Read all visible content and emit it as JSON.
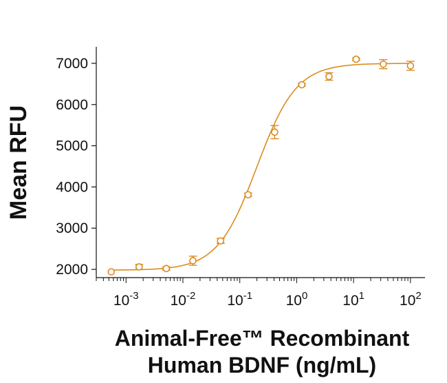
{
  "chart_data": {
    "type": "scatter",
    "x_scale": "log",
    "xlabel_lines": [
      "Animal-Free™ Recombinant",
      "Human BDNF (ng/mL)"
    ],
    "ylabel": "Mean RFU",
    "xlim": [
      0.0003,
      180
    ],
    "ylim": [
      1800,
      7400
    ],
    "y_ticks": [
      2000,
      3000,
      4000,
      5000,
      6000,
      7000
    ],
    "x_ticks": [
      {
        "value": 0.001,
        "base": "10",
        "exp": "-3"
      },
      {
        "value": 0.01,
        "base": "10",
        "exp": "-2"
      },
      {
        "value": 0.1,
        "base": "10",
        "exp": "-1"
      },
      {
        "value": 1,
        "base": "10",
        "exp": "0"
      },
      {
        "value": 10,
        "base": "10",
        "exp": "1"
      },
      {
        "value": 100,
        "base": "10",
        "exp": "2"
      }
    ],
    "grid": false,
    "color": "#D98C1F",
    "series": [
      {
        "points": [
          {
            "x": 0.00055,
            "y": 1940,
            "err": 0
          },
          {
            "x": 0.0017,
            "y": 2060,
            "err": 60
          },
          {
            "x": 0.0051,
            "y": 2020,
            "err": 40
          },
          {
            "x": 0.015,
            "y": 2210,
            "err": 110
          },
          {
            "x": 0.046,
            "y": 2690,
            "err": 60
          },
          {
            "x": 0.14,
            "y": 3810,
            "err": 40
          },
          {
            "x": 0.41,
            "y": 5330,
            "err": 160
          },
          {
            "x": 1.23,
            "y": 6480,
            "err": 30
          },
          {
            "x": 3.7,
            "y": 6680,
            "err": 90
          },
          {
            "x": 11.1,
            "y": 7100,
            "err": 30
          },
          {
            "x": 33.3,
            "y": 6980,
            "err": 110
          },
          {
            "x": 100,
            "y": 6940,
            "err": 110
          }
        ]
      }
    ],
    "fit": {
      "model": "4PL",
      "bottom": 1980,
      "top": 7000,
      "ec50": 0.2,
      "hill": 1.25
    }
  }
}
